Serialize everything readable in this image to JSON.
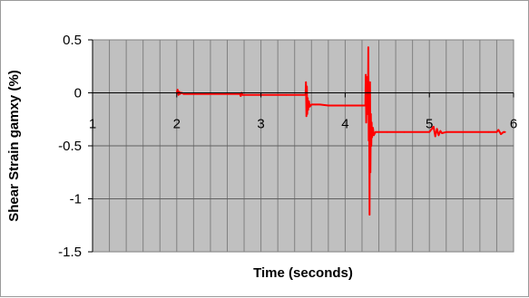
{
  "chart_data": {
    "type": "line",
    "title": "",
    "xlabel": "Time (seconds)",
    "ylabel": "Shear Strain gamxy (%)",
    "xlim": [
      1,
      6
    ],
    "ylim": [
      -1.5,
      0.5
    ],
    "x_ticks": [
      "1",
      "2",
      "3",
      "4",
      "5",
      "6"
    ],
    "y_ticks": [
      "0.5",
      "0",
      "-0.5",
      "-1",
      "-1.5"
    ],
    "grid": true,
    "legend": "none",
    "plot_background": "#c0c0c0",
    "gridline_color": "#808080",
    "series_color": "#ff0000",
    "series": [
      {
        "x": [
          2.0,
          2.01,
          2.02,
          2.03,
          2.04,
          2.05,
          2.06,
          2.08,
          2.2,
          2.5,
          2.75,
          2.76,
          2.77,
          2.78,
          2.8,
          3.0,
          3.3,
          3.5,
          3.53,
          3.535,
          3.54,
          3.545,
          3.55,
          3.555,
          3.56,
          3.57,
          3.58,
          3.6,
          3.65,
          3.7,
          3.8,
          4.0,
          4.2,
          4.24,
          4.245,
          4.25,
          4.255,
          4.26,
          4.265,
          4.27,
          4.275,
          4.28,
          4.285,
          4.29,
          4.295,
          4.3,
          4.305,
          4.31,
          4.315,
          4.32,
          4.33,
          4.34,
          4.36,
          4.4,
          4.5,
          4.7,
          5.0,
          5.05,
          5.07,
          5.09,
          5.11,
          5.13,
          5.15,
          5.2,
          5.4,
          5.7,
          5.8,
          5.82,
          5.85,
          5.88,
          5.9
        ],
        "y": [
          0.0,
          0.03,
          -0.02,
          0.01,
          -0.01,
          0.0,
          0.0,
          -0.01,
          -0.01,
          -0.01,
          -0.01,
          -0.03,
          0.0,
          -0.02,
          -0.02,
          -0.02,
          -0.02,
          -0.02,
          -0.02,
          0.1,
          -0.22,
          0.06,
          -0.2,
          -0.05,
          -0.16,
          -0.08,
          -0.13,
          -0.11,
          -0.11,
          -0.11,
          -0.12,
          -0.12,
          -0.12,
          -0.12,
          0.17,
          -0.28,
          0.1,
          -0.2,
          0.15,
          -0.2,
          0.43,
          -0.45,
          0.05,
          -1.15,
          0.1,
          -0.75,
          -0.2,
          -0.5,
          -0.28,
          -0.42,
          -0.33,
          -0.4,
          -0.37,
          -0.37,
          -0.37,
          -0.37,
          -0.37,
          -0.32,
          -0.41,
          -0.34,
          -0.4,
          -0.36,
          -0.38,
          -0.37,
          -0.37,
          -0.37,
          -0.37,
          -0.35,
          -0.39,
          -0.37,
          -0.37
        ]
      }
    ]
  }
}
